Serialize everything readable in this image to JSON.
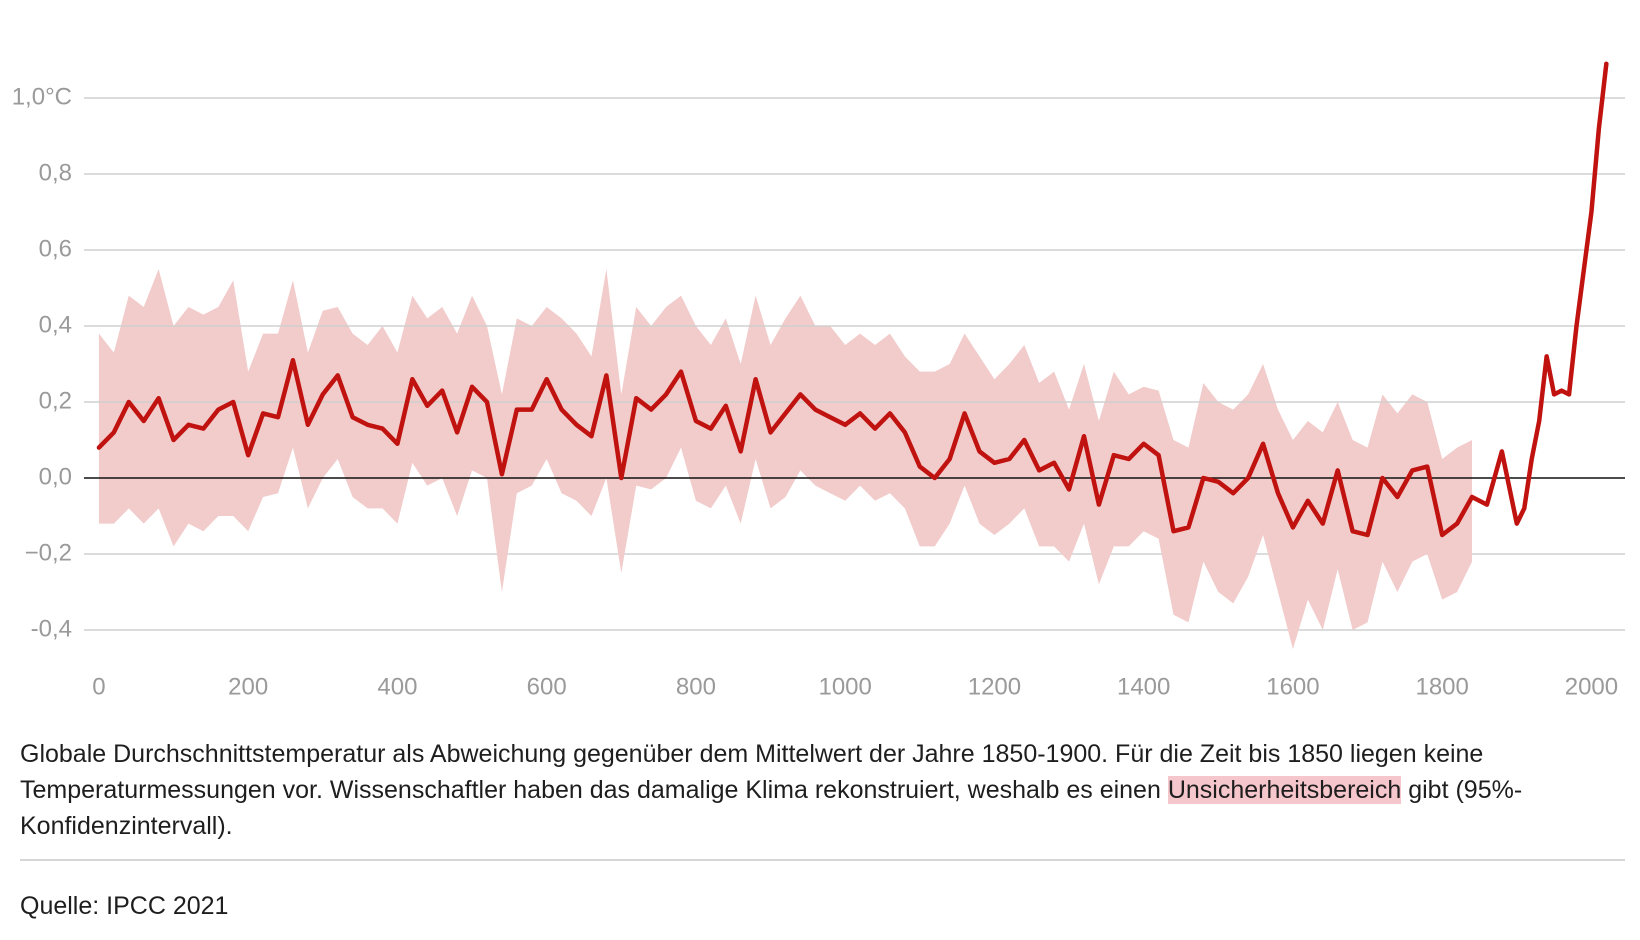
{
  "chart_data": {
    "type": "line",
    "x": [
      0,
      20,
      40,
      60,
      80,
      100,
      120,
      140,
      160,
      180,
      200,
      220,
      240,
      260,
      280,
      300,
      320,
      340,
      360,
      380,
      400,
      420,
      440,
      460,
      480,
      500,
      520,
      540,
      560,
      580,
      600,
      620,
      640,
      660,
      680,
      700,
      720,
      740,
      760,
      780,
      800,
      820,
      840,
      860,
      880,
      900,
      920,
      940,
      960,
      980,
      1000,
      1020,
      1040,
      1060,
      1080,
      1100,
      1120,
      1140,
      1160,
      1180,
      1200,
      1220,
      1240,
      1260,
      1280,
      1300,
      1320,
      1340,
      1360,
      1380,
      1400,
      1420,
      1440,
      1460,
      1480,
      1500,
      1520,
      1540,
      1560,
      1580,
      1600,
      1620,
      1640,
      1660,
      1680,
      1700,
      1720,
      1740,
      1760,
      1780,
      1800,
      1820,
      1840,
      1860,
      1880,
      1900,
      1910,
      1920,
      1930,
      1940,
      1950,
      1960,
      1970,
      1980,
      1990,
      2000,
      2010,
      2020
    ],
    "line": {
      "color": "#c0120f",
      "values": [
        0.08,
        0.12,
        0.2,
        0.15,
        0.21,
        0.1,
        0.14,
        0.13,
        0.18,
        0.2,
        0.06,
        0.17,
        0.16,
        0.31,
        0.14,
        0.22,
        0.27,
        0.16,
        0.14,
        0.13,
        0.09,
        0.26,
        0.19,
        0.23,
        0.12,
        0.24,
        0.2,
        0.01,
        0.18,
        0.18,
        0.26,
        0.18,
        0.14,
        0.11,
        0.27,
        0.0,
        0.21,
        0.18,
        0.22,
        0.28,
        0.15,
        0.13,
        0.19,
        0.07,
        0.26,
        0.12,
        0.17,
        0.22,
        0.18,
        0.16,
        0.14,
        0.17,
        0.13,
        0.17,
        0.12,
        0.03,
        0.0,
        0.05,
        0.17,
        0.07,
        0.04,
        0.05,
        0.1,
        0.02,
        0.04,
        -0.03,
        0.11,
        -0.07,
        0.06,
        0.05,
        0.09,
        0.06,
        -0.14,
        -0.13,
        0.0,
        -0.01,
        -0.04,
        0.0,
        0.09,
        -0.04,
        -0.13,
        -0.06,
        -0.12,
        0.02,
        -0.14,
        -0.15,
        0.0,
        -0.05,
        0.02,
        0.03,
        -0.15,
        -0.12,
        -0.05,
        -0.07,
        0.07,
        -0.12,
        -0.08,
        0.05,
        0.15,
        0.32,
        0.22,
        0.23,
        0.22,
        0.4,
        0.55,
        0.7,
        0.92,
        1.09
      ]
    },
    "band": {
      "color": "#f2cbcb",
      "upper": [
        0.38,
        0.33,
        0.48,
        0.45,
        0.55,
        0.4,
        0.45,
        0.43,
        0.45,
        0.52,
        0.28,
        0.38,
        0.38,
        0.52,
        0.33,
        0.44,
        0.45,
        0.38,
        0.35,
        0.4,
        0.33,
        0.48,
        0.42,
        0.45,
        0.38,
        0.48,
        0.4,
        0.22,
        0.42,
        0.4,
        0.45,
        0.42,
        0.38,
        0.32,
        0.55,
        0.22,
        0.45,
        0.4,
        0.45,
        0.48,
        0.4,
        0.35,
        0.42,
        0.3,
        0.48,
        0.35,
        0.42,
        0.48,
        0.4,
        0.4,
        0.35,
        0.38,
        0.35,
        0.38,
        0.32,
        0.28,
        0.28,
        0.3,
        0.38,
        0.32,
        0.26,
        0.3,
        0.35,
        0.25,
        0.28,
        0.18,
        0.3,
        0.15,
        0.28,
        0.22,
        0.24,
        0.23,
        0.1,
        0.08,
        0.25,
        0.2,
        0.18,
        0.22,
        0.3,
        0.18,
        0.1,
        0.15,
        0.12,
        0.2,
        0.1,
        0.08,
        0.22,
        0.17,
        0.22,
        0.2,
        0.05,
        0.08,
        0.1,
        null,
        null,
        null,
        null,
        null,
        null,
        null,
        null,
        null,
        null,
        null,
        null,
        null,
        null,
        null
      ],
      "lower": [
        -0.12,
        -0.12,
        -0.08,
        -0.12,
        -0.08,
        -0.18,
        -0.12,
        -0.14,
        -0.1,
        -0.1,
        -0.14,
        -0.05,
        -0.04,
        0.08,
        -0.08,
        0.0,
        0.05,
        -0.05,
        -0.08,
        -0.08,
        -0.12,
        0.04,
        -0.02,
        0.0,
        -0.1,
        0.02,
        0.0,
        -0.3,
        -0.04,
        -0.02,
        0.05,
        -0.04,
        -0.06,
        -0.1,
        0.0,
        -0.25,
        -0.02,
        -0.03,
        0.0,
        0.08,
        -0.06,
        -0.08,
        -0.02,
        -0.12,
        0.05,
        -0.08,
        -0.05,
        0.02,
        -0.02,
        -0.04,
        -0.06,
        -0.02,
        -0.06,
        -0.04,
        -0.08,
        -0.18,
        -0.18,
        -0.12,
        -0.02,
        -0.12,
        -0.15,
        -0.12,
        -0.08,
        -0.18,
        -0.18,
        -0.22,
        -0.12,
        -0.28,
        -0.18,
        -0.18,
        -0.14,
        -0.16,
        -0.36,
        -0.38,
        -0.22,
        -0.3,
        -0.33,
        -0.26,
        -0.15,
        -0.3,
        -0.45,
        -0.32,
        -0.4,
        -0.24,
        -0.4,
        -0.38,
        -0.22,
        -0.3,
        -0.22,
        -0.2,
        -0.32,
        -0.3,
        -0.22,
        null,
        null,
        null,
        null,
        null,
        null,
        null,
        null,
        null,
        null,
        null,
        null,
        null,
        null,
        null
      ]
    },
    "xlim": [
      -20,
      2045
    ],
    "ylim": [
      -0.5,
      1.15
    ],
    "xticks": [
      0,
      200,
      400,
      600,
      800,
      1000,
      1200,
      1400,
      1600,
      1800,
      2000
    ],
    "yticks": [
      {
        "value": -0.4,
        "label": "-0,4"
      },
      {
        "value": -0.2,
        "label": "−0,2"
      },
      {
        "value": 0,
        "label": "0,0"
      },
      {
        "value": 0.2,
        "label": "0,2"
      },
      {
        "value": 0.4,
        "label": "0,4"
      },
      {
        "value": 0.6,
        "label": "0,6"
      },
      {
        "value": 0.8,
        "label": "0,8"
      },
      {
        "value": 1.0,
        "label": "1,0°C"
      }
    ],
    "grid": true,
    "zero_line_color": "#111111",
    "grid_color": "#d0d0d0"
  },
  "caption": {
    "before": "Globale Durchschnittstemperatur als Abweichung gegenüber dem Mittelwert der Jahre 1850-1900. Für die Zeit bis 1850 liegen keine Temperaturmessungen vor. Wissenschaftler haben das damalige Klima rekonstruiert, weshalb es einen ",
    "highlight": "Unsicherheitsbereich",
    "after": " gibt (95%-Konfidenzintervall)."
  },
  "source": "Quelle: IPCC 2021"
}
